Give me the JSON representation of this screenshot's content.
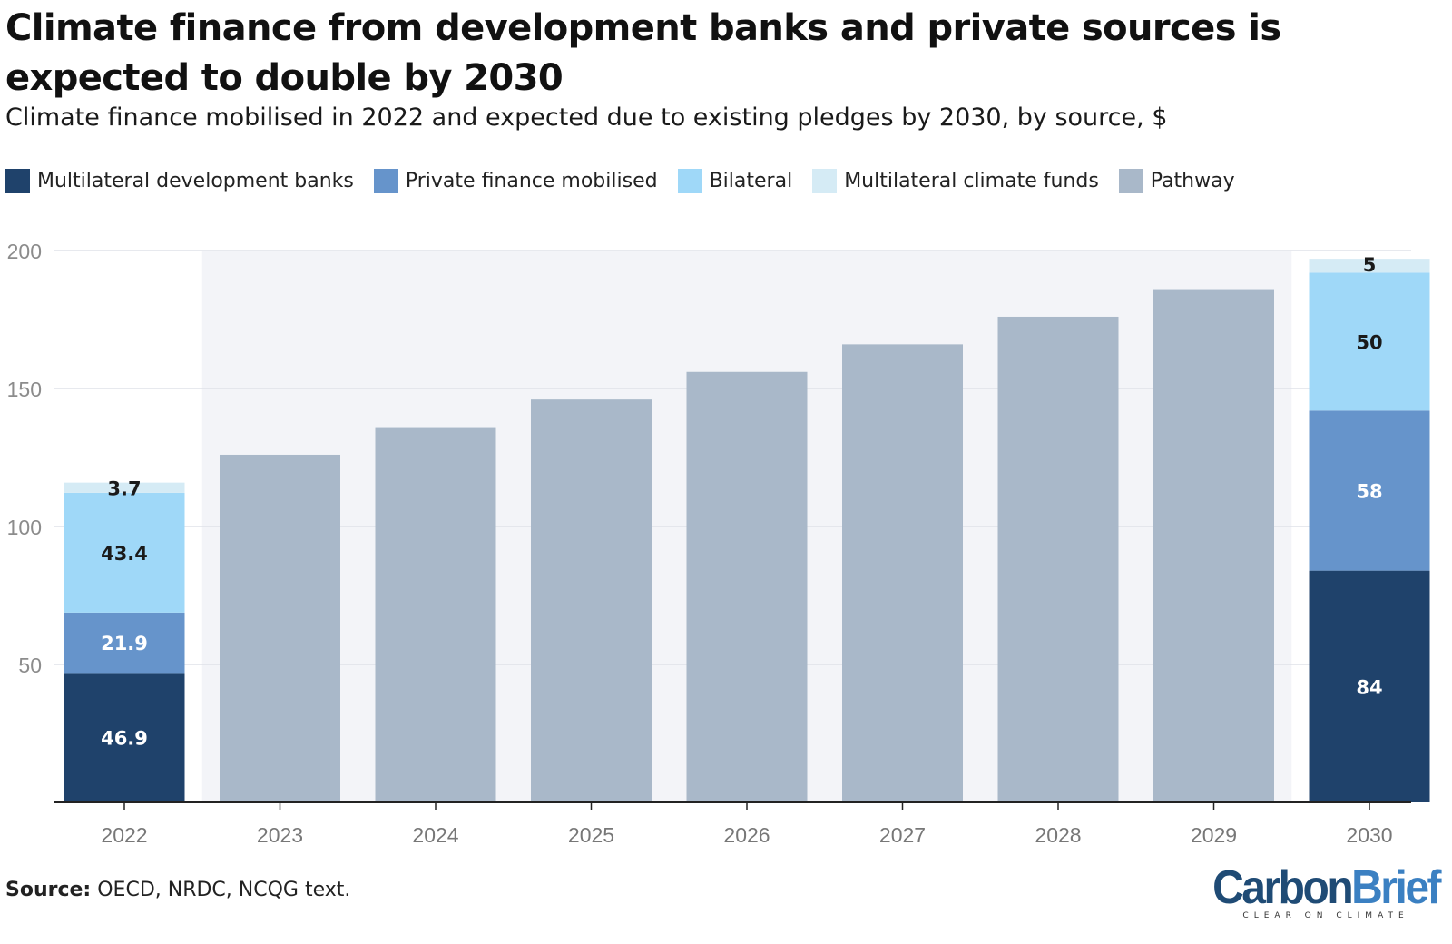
{
  "header": {
    "title": "Climate finance from development banks and private sources is expected to double by 2030",
    "subtitle": "Climate finance mobilised in 2022 and expected due to existing pledges by 2030, by source, $"
  },
  "legend": [
    {
      "label": "Multilateral development banks",
      "color": "#1f426b"
    },
    {
      "label": "Private finance mobilised",
      "color": "#6694cb"
    },
    {
      "label": "Bilateral",
      "color": "#9fd8f8"
    },
    {
      "label": "Multilateral climate funds",
      "color": "#d5ebf5"
    },
    {
      "label": "Pathway",
      "color": "#a9b8c9"
    }
  ],
  "footer": {
    "source_label": "Source:",
    "source_text": "OECD, NRDC, NCQG text.",
    "logo_carbon": "Carbon",
    "logo_brief": "Brief",
    "logo_tagline": "CLEAR ON CLIMATE"
  },
  "chart_data": {
    "type": "bar",
    "stacked": true,
    "categories": [
      "2022",
      "2023",
      "2024",
      "2025",
      "2026",
      "2027",
      "2028",
      "2029",
      "2030"
    ],
    "series": [
      {
        "name": "Multilateral development banks",
        "color": "#1f426b",
        "label_color": "#ffffff",
        "values": [
          46.9,
          null,
          null,
          null,
          null,
          null,
          null,
          null,
          84
        ]
      },
      {
        "name": "Private finance mobilised",
        "color": "#6694cb",
        "label_color": "#ffffff",
        "values": [
          21.9,
          null,
          null,
          null,
          null,
          null,
          null,
          null,
          58
        ]
      },
      {
        "name": "Bilateral",
        "color": "#9fd8f8",
        "label_color": "#1a1a1a",
        "values": [
          43.4,
          null,
          null,
          null,
          null,
          null,
          null,
          null,
          50
        ]
      },
      {
        "name": "Multilateral climate funds",
        "color": "#d5ebf5",
        "label_color": "#1a1a1a",
        "values": [
          3.7,
          null,
          null,
          null,
          null,
          null,
          null,
          null,
          5
        ]
      },
      {
        "name": "Pathway",
        "color": "#a9b8c9",
        "label_color": "#1a1a1a",
        "show_labels": false,
        "values": [
          null,
          126,
          136,
          146,
          156,
          166,
          176,
          186,
          null
        ]
      }
    ],
    "ylim": [
      0,
      200
    ],
    "yticks": [
      "50",
      "100",
      "150",
      "200"
    ],
    "grid": true,
    "shaded_band": {
      "from": "2023",
      "to": "2029",
      "color": "#f3f4f8"
    },
    "legend_position": "top-left"
  }
}
